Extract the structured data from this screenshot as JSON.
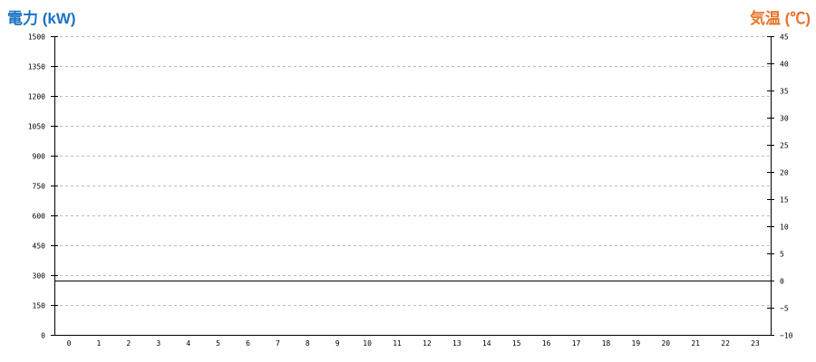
{
  "chart_data": {
    "type": "line",
    "left_axis": {
      "title": "電力 (kW)",
      "color": "#1a73c0",
      "ylim": [
        0,
        1500
      ],
      "ticks": [
        0,
        150,
        300,
        450,
        600,
        750,
        900,
        1050,
        1200,
        1350,
        1500
      ]
    },
    "right_axis": {
      "title": "気温 (℃)",
      "color": "#e8742a",
      "ylim": [
        -10,
        45
      ],
      "ticks": [
        -10,
        -5,
        0,
        5,
        10,
        15,
        20,
        25,
        30,
        35,
        40,
        45
      ]
    },
    "categories": [
      "0",
      "1",
      "2",
      "3",
      "4",
      "5",
      "6",
      "7",
      "8",
      "9",
      "10",
      "11",
      "12",
      "13",
      "14",
      "15",
      "16",
      "17",
      "18",
      "19",
      "20",
      "21",
      "22",
      "23"
    ],
    "series": [],
    "reference_lines": [
      {
        "axis": "right",
        "value": 0
      }
    ],
    "grid": true,
    "grid_color": "#bbbbbb"
  }
}
